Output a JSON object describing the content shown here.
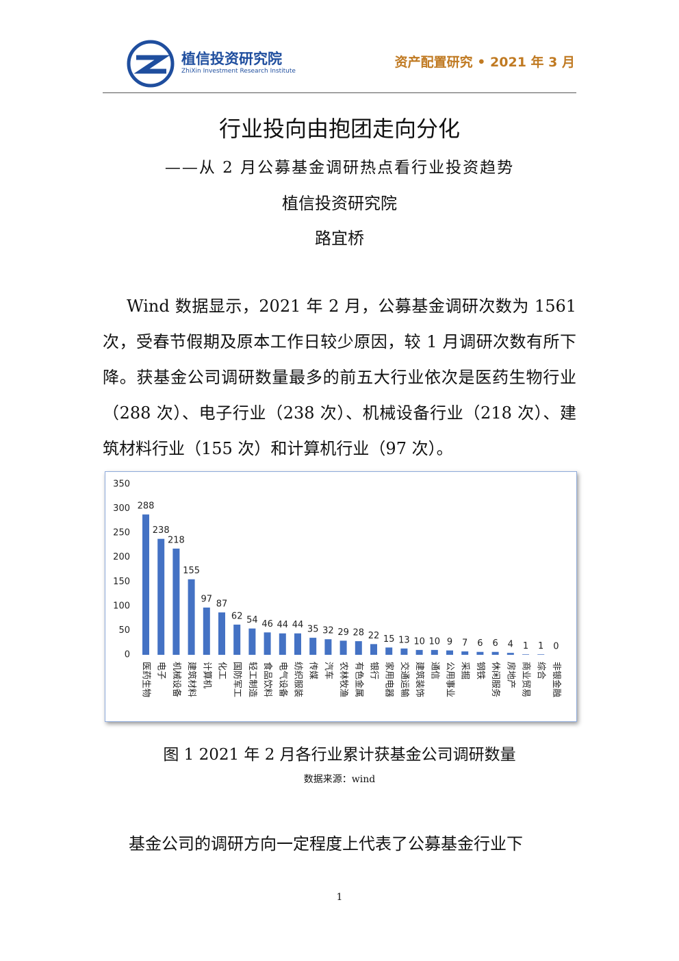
{
  "header": {
    "institute": "植信投资研究院",
    "institute_en": "ZhiXin Investment Research Institute",
    "series_info": "资产配置研究 • 2021 年 3 月"
  },
  "title": "行业投向由抱团走向分化",
  "subtitle": "——从 2 月公募基金调研热点看行业投资趋势",
  "organization": "植信投资研究院",
  "author": "路宜桥",
  "paragraph_1": "Wind 数据显示，2021 年 2 月，公募基金调研次数为 1561 次，受春节假期及原本工作日较少原因，较 1 月调研次数有所下降。获基金公司调研数量最多的前五大行业依次是医药生物行业（288 次）、电子行业（238 次）、机械设备行业（218 次）、建筑材料行业（155 次）和计算机行业（97 次）。",
  "chart_data": {
    "type": "bar",
    "categories": [
      "医药生物",
      "电子",
      "机械设备",
      "建筑材料",
      "计算机",
      "化工",
      "国防军工",
      "轻工制造",
      "食品饮料",
      "电气设备",
      "纺织服装",
      "传媒",
      "汽车",
      "农林牧渔",
      "有色金属",
      "银行",
      "家用电器",
      "交通运输",
      "建筑装饰",
      "通信",
      "公用事业",
      "采掘",
      "钢铁",
      "休闲服务",
      "房地产",
      "商业贸易",
      "综合",
      "非银金融"
    ],
    "values": [
      288,
      238,
      218,
      155,
      97,
      87,
      62,
      54,
      46,
      44,
      44,
      35,
      32,
      29,
      28,
      22,
      15,
      13,
      10,
      10,
      9,
      7,
      6,
      6,
      4,
      1,
      1,
      0
    ],
    "color": "#4472c4",
    "ylim": [
      0,
      350
    ],
    "yticks": [
      0,
      50,
      100,
      150,
      200,
      250,
      300,
      350
    ],
    "grid": false
  },
  "figure_caption": "图 1 2021 年 2 月各行业累计获基金公司调研数量",
  "figure_source": "数据来源：wind",
  "paragraph_2": "基金公司的调研方向一定程度上代表了公募基金行业下",
  "page_number": "1"
}
